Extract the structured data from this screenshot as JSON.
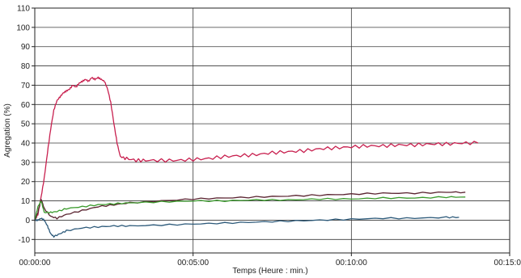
{
  "chart_data": {
    "type": "line",
    "title": "",
    "xlabel": "Temps (Heure : min.)",
    "ylabel": "Agregation (%)",
    "xlim": [
      0,
      15
    ],
    "ylim": [
      -17,
      110
    ],
    "y_ticks": [
      -10,
      0,
      10,
      20,
      30,
      40,
      50,
      60,
      70,
      80,
      90,
      100,
      110
    ],
    "x_ticks": [
      {
        "value": 0,
        "label": "00:00:00"
      },
      {
        "value": 5,
        "label": "00:05:00"
      },
      {
        "value": 10,
        "label": "00:10:00"
      },
      {
        "value": 15,
        "label": "00:15:00"
      }
    ],
    "grid": true,
    "legend": "none",
    "series": [
      {
        "color": "#c8204f",
        "x": [
          0,
          0.1,
          0.2,
          0.3,
          0.4,
          0.5,
          0.6,
          0.7,
          0.8,
          0.9,
          1.0,
          1.1,
          1.2,
          1.3,
          1.4,
          1.5,
          1.6,
          1.7,
          1.8,
          1.9,
          2.0,
          2.1,
          2.2,
          2.3,
          2.4,
          2.5,
          2.6,
          2.7,
          2.9,
          3.2,
          3.5,
          4.0,
          4.5,
          5.0,
          5.5,
          6.0,
          6.5,
          7.0,
          7.5,
          8.0,
          8.5,
          9.0,
          9.5,
          10.0,
          10.5,
          11.0,
          11.5,
          12.0,
          12.5,
          13.0,
          13.5,
          14.0
        ],
        "y": [
          0,
          3,
          12,
          22,
          35,
          47,
          57,
          62,
          64,
          66,
          67,
          68,
          70,
          69,
          71,
          72,
          73,
          72,
          74,
          73,
          74,
          73,
          72,
          68,
          61,
          50,
          40,
          33,
          32,
          31,
          31,
          31,
          31,
          31.5,
          32,
          33,
          33.5,
          34,
          35,
          35.5,
          36,
          37,
          37.5,
          38,
          38.5,
          38.5,
          39,
          39,
          39.5,
          39.5,
          40,
          40
        ]
      },
      {
        "color": "#5a2430",
        "x": [
          0,
          0.1,
          0.2,
          0.3,
          0.5,
          0.7,
          1.0,
          1.5,
          2.0,
          2.5,
          3.0,
          4.0,
          5.0,
          6.0,
          7.0,
          8.0,
          9.0,
          10.0,
          11.0,
          12.0,
          13.0,
          13.6
        ],
        "y": [
          0,
          4,
          11,
          6,
          2,
          1,
          3,
          5,
          7,
          8,
          9,
          10,
          11,
          11.5,
          12,
          12.5,
          13,
          13.5,
          14,
          14,
          14.5,
          14.5
        ]
      },
      {
        "color": "#3a9a2c",
        "x": [
          0,
          0.1,
          0.2,
          0.3,
          0.5,
          0.7,
          1.0,
          1.5,
          2.0,
          2.5,
          3.0,
          4.0,
          5.0,
          6.0,
          7.0,
          8.0,
          9.0,
          10.0,
          11.0,
          12.0,
          13.0,
          13.6
        ],
        "y": [
          0,
          7,
          10,
          4,
          4,
          4.5,
          6,
          7,
          8,
          8.5,
          9,
          9.5,
          10,
          10,
          10.5,
          10.5,
          11,
          11,
          11.5,
          11.5,
          12,
          12
        ]
      },
      {
        "color": "#2d5a7a",
        "x": [
          0,
          0.1,
          0.2,
          0.3,
          0.4,
          0.5,
          0.6,
          0.8,
          1.0,
          1.5,
          2.0,
          2.5,
          3.0,
          4.0,
          5.0,
          6.0,
          7.0,
          8.0,
          9.0,
          10.0,
          11.0,
          12.0,
          13.0,
          13.4
        ],
        "y": [
          0,
          0,
          1,
          0,
          -3,
          -7,
          -8.5,
          -7,
          -5.5,
          -4,
          -3.5,
          -3,
          -3,
          -2.5,
          -2,
          -1.5,
          -1,
          -0.5,
          0,
          0.5,
          1,
          1,
          1.5,
          1.5
        ]
      }
    ]
  }
}
